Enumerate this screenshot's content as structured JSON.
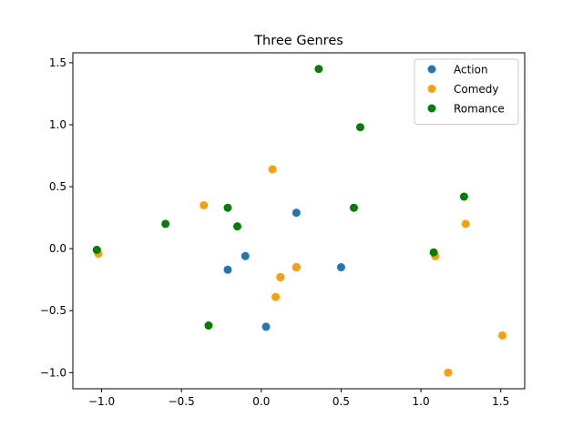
{
  "chart_data": {
    "type": "scatter",
    "title": "Three Genres",
    "xlabel": "",
    "ylabel": "",
    "xlim": [
      -1.18,
      1.65
    ],
    "ylim": [
      -1.13,
      1.58
    ],
    "xticks": [
      -1.0,
      -0.5,
      0.0,
      0.5,
      1.0,
      1.5
    ],
    "xtick_labels": [
      "−1.0",
      "−0.5",
      "0.0",
      "0.5",
      "1.0",
      "1.5"
    ],
    "yticks": [
      -1.0,
      -0.5,
      0.0,
      0.5,
      1.0,
      1.5
    ],
    "ytick_labels": [
      "−1.0",
      "−0.5",
      "0.0",
      "0.5",
      "1.0",
      "1.5"
    ],
    "grid": false,
    "legend_position": "top-right",
    "series": [
      {
        "name": "Action",
        "color": "#1f77b4",
        "points": [
          [
            0.22,
            0.29
          ],
          [
            -0.1,
            -0.06
          ],
          [
            -0.21,
            -0.17
          ],
          [
            0.22,
            -0.15
          ],
          [
            0.5,
            -0.15
          ],
          [
            0.12,
            -0.23
          ],
          [
            0.03,
            -0.63
          ],
          [
            -1.03,
            -0.01
          ]
        ]
      },
      {
        "name": "Comedy",
        "color": "#ff9f00",
        "points": [
          [
            -1.02,
            -0.04
          ],
          [
            -0.36,
            0.35
          ],
          [
            0.07,
            0.64
          ],
          [
            0.22,
            -0.15
          ],
          [
            0.12,
            -0.23
          ],
          [
            0.09,
            -0.39
          ],
          [
            1.09,
            -0.06
          ],
          [
            1.28,
            0.2
          ],
          [
            1.17,
            -1.0
          ],
          [
            1.51,
            -0.7
          ]
        ]
      },
      {
        "name": "Romance",
        "color": "#008000",
        "points": [
          [
            -1.03,
            -0.01
          ],
          [
            -0.6,
            0.2
          ],
          [
            -0.21,
            0.33
          ],
          [
            -0.15,
            0.18
          ],
          [
            -0.33,
            -0.62
          ],
          [
            0.36,
            1.45
          ],
          [
            0.62,
            0.98
          ],
          [
            0.58,
            0.33
          ],
          [
            1.08,
            -0.03
          ],
          [
            1.27,
            0.42
          ]
        ]
      }
    ]
  }
}
